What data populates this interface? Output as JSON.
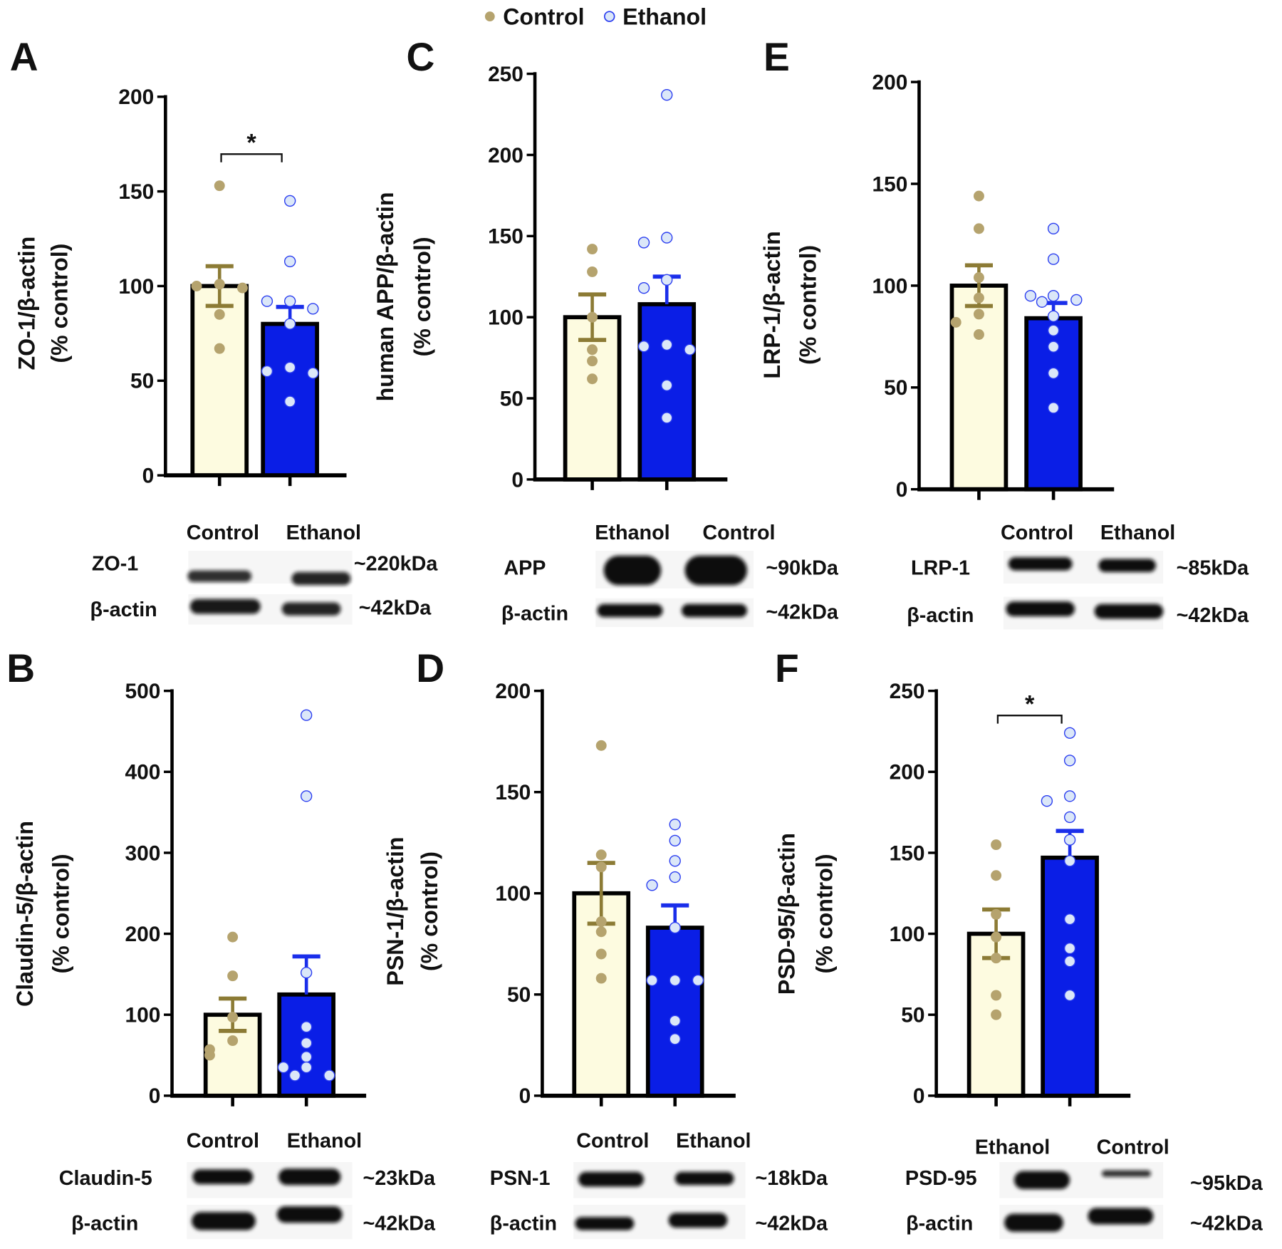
{
  "legend": {
    "items": [
      {
        "label": "Control",
        "marker": "filled-tan-dot"
      },
      {
        "label": "Ethanol",
        "marker": "hollow-blue-dot"
      }
    ]
  },
  "colors": {
    "control_bar": "#fdfbe0",
    "control_point": "#b5a36e",
    "control_error": "#8c7b35",
    "ethanol_bar": "#0a1ee6",
    "ethanol_point": "#dbe7f8",
    "ethanol_stroke": "#2a3df0",
    "ethanol_error": "#1a2eea"
  },
  "chart_data": [
    {
      "panel": "A",
      "type": "bar",
      "ylabel": [
        "ZO-1/β-actin",
        "(% control)"
      ],
      "ylim": [
        0,
        200
      ],
      "yticks": [
        0,
        50,
        100,
        150,
        200
      ],
      "series": [
        {
          "name": "Control",
          "mean": 100,
          "sem": 10.5,
          "points": [
            153,
            101,
            100,
            99,
            85,
            67
          ]
        },
        {
          "name": "Ethanol",
          "mean": 80,
          "sem": 9,
          "points": [
            145,
            113,
            92,
            92,
            88,
            80,
            57,
            55,
            54,
            39
          ]
        }
      ],
      "significance": "*"
    },
    {
      "panel": "C",
      "type": "bar",
      "ylabel": [
        "human APP/β-actin",
        "(% control)"
      ],
      "ylim": [
        0,
        250
      ],
      "yticks": [
        0,
        50,
        100,
        150,
        200,
        250
      ],
      "series": [
        {
          "name": "Control",
          "mean": 100,
          "sem": 14,
          "points": [
            142,
            128,
            100,
            80,
            73,
            62
          ]
        },
        {
          "name": "Ethanol",
          "mean": 108,
          "sem": 17,
          "points": [
            237,
            149,
            146,
            123,
            118,
            83,
            82,
            80,
            58,
            38
          ]
        }
      ],
      "significance": ""
    },
    {
      "panel": "E",
      "type": "bar",
      "ylabel": [
        "LRP-1/β-actin",
        "(% control)"
      ],
      "ylim": [
        0,
        200
      ],
      "yticks": [
        0,
        50,
        100,
        150,
        200
      ],
      "series": [
        {
          "name": "Control",
          "mean": 100,
          "sem": 10,
          "points": [
            144,
            128,
            104,
            94,
            86,
            82,
            76
          ]
        },
        {
          "name": "Ethanol",
          "mean": 84,
          "sem": 7.5,
          "points": [
            128,
            113,
            95,
            95,
            93,
            92,
            85,
            78,
            70,
            57,
            40
          ]
        }
      ],
      "significance": ""
    },
    {
      "panel": "B",
      "type": "bar",
      "ylabel": [
        "Claudin-5/β-actin",
        "(% control)"
      ],
      "ylim": [
        0,
        500
      ],
      "yticks": [
        0,
        100,
        200,
        300,
        400,
        500
      ],
      "series": [
        {
          "name": "Control",
          "mean": 100,
          "sem": 20,
          "points": [
            196,
            148,
            97,
            68,
            57,
            50
          ]
        },
        {
          "name": "Ethanol",
          "mean": 125,
          "sem": 47,
          "points": [
            470,
            370,
            152,
            85,
            65,
            48,
            35,
            35,
            25,
            25
          ]
        }
      ],
      "significance": ""
    },
    {
      "panel": "D",
      "type": "bar",
      "ylabel": [
        "PSN-1/β-actin",
        "(% control)"
      ],
      "ylim": [
        0,
        200
      ],
      "yticks": [
        0,
        50,
        100,
        150,
        200
      ],
      "series": [
        {
          "name": "Control",
          "mean": 100,
          "sem": 15,
          "points": [
            173,
            119,
            113,
            86,
            81,
            70,
            58
          ]
        },
        {
          "name": "Ethanol",
          "mean": 83,
          "sem": 11,
          "points": [
            134,
            126,
            116,
            108,
            104,
            83,
            57,
            57,
            57,
            37,
            28
          ]
        }
      ],
      "significance": ""
    },
    {
      "panel": "F",
      "type": "bar",
      "ylabel": [
        "PSD-95/β-actin",
        "(% control)"
      ],
      "ylim": [
        0,
        250
      ],
      "yticks": [
        0,
        50,
        100,
        150,
        200,
        250
      ],
      "series": [
        {
          "name": "Control",
          "mean": 100,
          "sem": 15,
          "points": [
            155,
            136,
            112,
            98,
            85,
            62,
            50
          ]
        },
        {
          "name": "Ethanol",
          "mean": 147,
          "sem": 16.5,
          "points": [
            224,
            207,
            185,
            182,
            172,
            158,
            145,
            109,
            91,
            83,
            62
          ]
        }
      ],
      "significance": "*"
    }
  ],
  "blots": [
    {
      "panel": "A",
      "lanes": [
        "Control",
        "Ethanol"
      ],
      "rows": [
        {
          "protein": "ZO-1",
          "size": "~220kDa"
        },
        {
          "protein": "β-actin",
          "size": "~42kDa"
        }
      ]
    },
    {
      "panel": "C",
      "lanes": [
        "Ethanol",
        "Control"
      ],
      "rows": [
        {
          "protein": "APP",
          "size": "~90kDa"
        },
        {
          "protein": "β-actin",
          "size": "~42kDa"
        }
      ]
    },
    {
      "panel": "E",
      "lanes": [
        "Control",
        "Ethanol"
      ],
      "rows": [
        {
          "protein": "LRP-1",
          "size": "~85kDa"
        },
        {
          "protein": "β-actin",
          "size": "~42kDa"
        }
      ]
    },
    {
      "panel": "B",
      "lanes": [
        "Control",
        "Ethanol"
      ],
      "rows": [
        {
          "protein": "Claudin-5",
          "size": "~23kDa"
        },
        {
          "protein": "β-actin",
          "size": "~42kDa"
        }
      ]
    },
    {
      "panel": "D",
      "lanes": [
        "Control",
        "Ethanol"
      ],
      "rows": [
        {
          "protein": "PSN-1",
          "size": "~18kDa"
        },
        {
          "protein": "β-actin",
          "size": "~42kDa"
        }
      ]
    },
    {
      "panel": "F",
      "lanes": [
        "Ethanol",
        "Control"
      ],
      "rows": [
        {
          "protein": "PSD-95",
          "size": "~95kDa"
        },
        {
          "protein": "β-actin",
          "size": "~42kDa"
        }
      ]
    }
  ]
}
